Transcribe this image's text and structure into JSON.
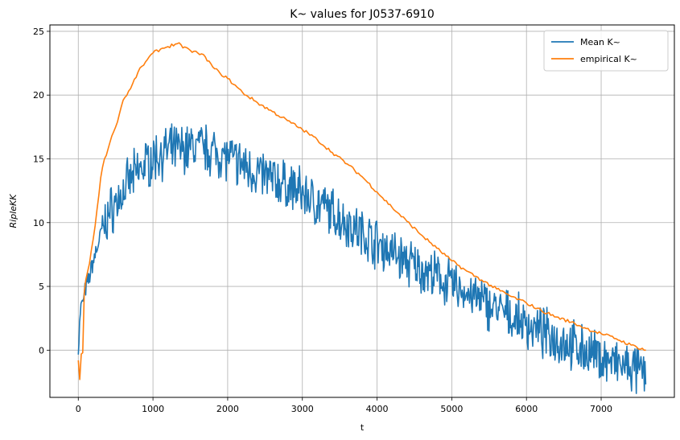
{
  "chart_data": {
    "type": "line",
    "title": "K~ values for J0537-6910",
    "xlabel": "t",
    "ylabel": "RipleKK",
    "xlim": [
      -380,
      7980
    ],
    "ylim": [
      -3.7,
      25.5
    ],
    "xticks": [
      0,
      1000,
      2000,
      3000,
      4000,
      5000,
      6000,
      7000
    ],
    "yticks": [
      0,
      5,
      10,
      15,
      20,
      25
    ],
    "grid": true,
    "legend_position": "top-right",
    "colors": {
      "mean": "#1f77b4",
      "empirical": "#ff7f0e"
    },
    "series": [
      {
        "name": "Mean K~",
        "noisy": true,
        "x": [
          0,
          30,
          60,
          100,
          150,
          200,
          250,
          300,
          350,
          400,
          500,
          600,
          700,
          800,
          900,
          1000,
          1100,
          1200,
          1300,
          1400,
          1500,
          1600,
          1700,
          1800,
          1900,
          2000,
          2200,
          2400,
          2600,
          2800,
          3000,
          3200,
          3400,
          3600,
          3800,
          4000,
          4200,
          4400,
          4600,
          4800,
          5000,
          5200,
          5400,
          5600,
          5800,
          6000,
          6200,
          6400,
          6600,
          6800,
          7000,
          7200,
          7400,
          7600
        ],
        "y": [
          0,
          3.2,
          3.8,
          4.8,
          5.8,
          7.0,
          8.0,
          9.0,
          9.8,
          10.6,
          11.5,
          12.4,
          13.3,
          14.0,
          14.6,
          15.0,
          15.4,
          15.6,
          15.7,
          15.8,
          15.9,
          16.0,
          15.8,
          15.6,
          15.4,
          15.1,
          14.5,
          13.9,
          13.4,
          12.9,
          12.3,
          11.5,
          10.8,
          10.0,
          9.2,
          8.4,
          7.7,
          6.9,
          6.3,
          5.7,
          5.1,
          4.5,
          3.8,
          3.2,
          2.6,
          2.0,
          1.4,
          0.9,
          0.4,
          -0.1,
          -0.6,
          -1.1,
          -1.5,
          -1.9
        ]
      },
      {
        "name": "empirical K~",
        "noisy": false,
        "x": [
          0,
          20,
          40,
          60,
          80,
          100,
          150,
          200,
          250,
          300,
          350,
          400,
          450,
          500,
          550,
          600,
          700,
          800,
          900,
          1000,
          1100,
          1200,
          1300,
          1350,
          1400,
          1500,
          1600,
          1700,
          1800,
          1900,
          2000,
          2200,
          2400,
          2600,
          2800,
          3000,
          3200,
          3400,
          3600,
          3800,
          4000,
          4200,
          4400,
          4600,
          4800,
          5000,
          5200,
          5400,
          5600,
          5800,
          6000,
          6200,
          6400,
          6600,
          6800,
          7000,
          7200,
          7400,
          7600
        ],
        "y": [
          -0.8,
          -2.3,
          -0.3,
          -0.2,
          4.5,
          5.5,
          6.8,
          8.7,
          11.0,
          13.5,
          15.0,
          15.8,
          16.8,
          17.5,
          18.5,
          19.6,
          20.5,
          21.8,
          22.6,
          23.3,
          23.6,
          23.8,
          24.0,
          24.1,
          23.7,
          23.5,
          23.3,
          23.0,
          22.2,
          21.7,
          21.3,
          20.2,
          19.4,
          18.7,
          18.0,
          17.3,
          16.5,
          15.5,
          14.6,
          13.6,
          12.4,
          11.2,
          10.1,
          9.0,
          8.0,
          7.0,
          6.2,
          5.5,
          4.8,
          4.2,
          3.7,
          3.1,
          2.6,
          2.2,
          1.7,
          1.3,
          0.9,
          0.4,
          0.0
        ]
      }
    ]
  }
}
